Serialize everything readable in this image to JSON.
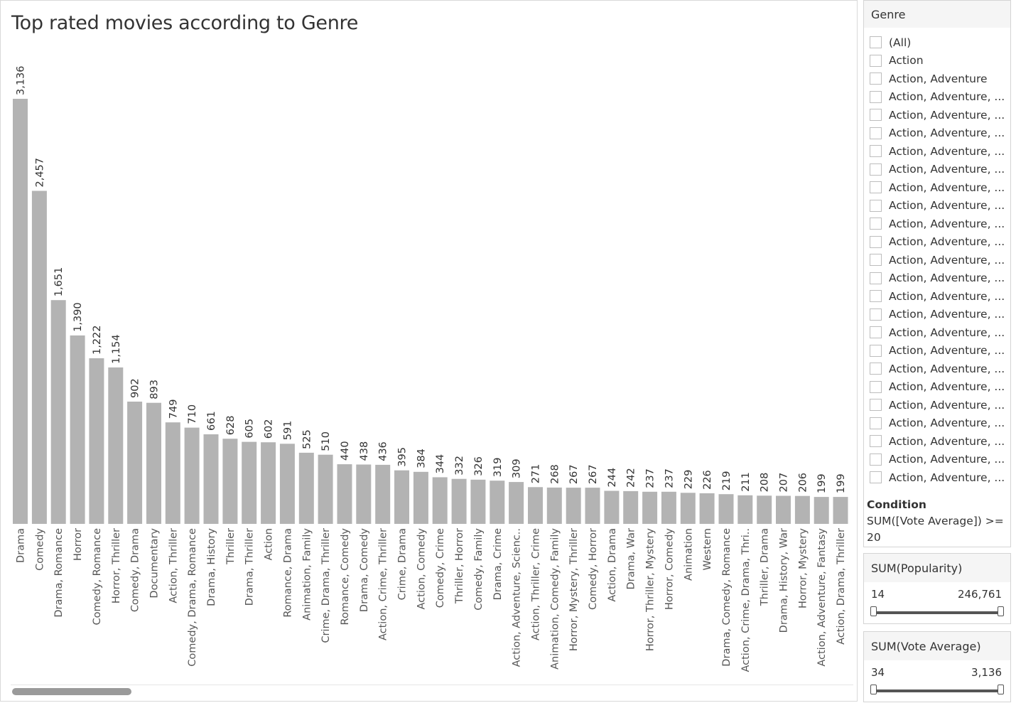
{
  "chart_data": {
    "type": "bar",
    "title": "Top rated movies according to Genre",
    "xlabel": "",
    "ylabel": "",
    "ylim": [
      0,
      3136
    ],
    "grid": false,
    "bar_color": "#b3b3b3",
    "categories": [
      "Drama",
      "Comedy",
      "Drama, Romance",
      "Horror",
      "Comedy, Romance",
      "Horror, Thriller",
      "Comedy, Drama",
      "Documentary",
      "Action, Thriller",
      "Comedy, Drama, Romance",
      "Drama, History",
      "Thriller",
      "Drama, Thriller",
      "Action",
      "Romance, Drama",
      "Animation, Family",
      "Crime, Drama, Thriller",
      "Romance, Comedy",
      "Drama, Comedy",
      "Action, Crime, Thriller",
      "Crime, Drama",
      "Action, Comedy",
      "Comedy, Crime",
      "Thriller, Horror",
      "Comedy, Family",
      "Drama, Crime",
      "Action, Adventure, Scienc..",
      "Action, Thriller, Crime",
      "Animation, Comedy, Family",
      "Horror, Mystery, Thriller",
      "Comedy, Horror",
      "Action, Drama",
      "Drama, War",
      "Horror, Thriller, Mystery",
      "Horror, Comedy",
      "Animation",
      "Western",
      "Drama, Comedy, Romance",
      "Action, Crime, Drama, Thri..",
      "Thriller, Drama",
      "Drama, History, War",
      "Horror, Mystery",
      "Action, Adventure, Fantasy",
      "Action, Drama, Thriller"
    ],
    "values": [
      3136,
      2457,
      1651,
      1390,
      1222,
      1154,
      902,
      893,
      749,
      710,
      661,
      628,
      605,
      602,
      591,
      525,
      510,
      440,
      438,
      436,
      395,
      384,
      344,
      332,
      326,
      319,
      309,
      271,
      268,
      267,
      267,
      244,
      242,
      237,
      237,
      229,
      226,
      219,
      211,
      208,
      207,
      206,
      199,
      199
    ],
    "value_labels": [
      "3,136",
      "2,457",
      "1,651",
      "1,390",
      "1,222",
      "1,154",
      "902",
      "893",
      "749",
      "710",
      "661",
      "628",
      "605",
      "602",
      "591",
      "525",
      "510",
      "440",
      "438",
      "436",
      "395",
      "384",
      "344",
      "332",
      "326",
      "319",
      "309",
      "271",
      "268",
      "267",
      "267",
      "244",
      "242",
      "237",
      "237",
      "229",
      "226",
      "219",
      "211",
      "208",
      "207",
      "206",
      "199",
      "199"
    ]
  },
  "genre_filter": {
    "title": "Genre",
    "items": [
      "(All)",
      "Action",
      "Action, Adventure",
      "Action, Adventure, ...",
      "Action, Adventure, ...",
      "Action, Adventure, ...",
      "Action, Adventure, ...",
      "Action, Adventure, ...",
      "Action, Adventure, ...",
      "Action, Adventure, ...",
      "Action, Adventure, ...",
      "Action, Adventure, ...",
      "Action, Adventure, ...",
      "Action, Adventure, ...",
      "Action, Adventure, ...",
      "Action, Adventure, ...",
      "Action, Adventure, ...",
      "Action, Adventure, ...",
      "Action, Adventure, ...",
      "Action, Adventure, ...",
      "Action, Adventure, ...",
      "Action, Adventure, ...",
      "Action, Adventure, ...",
      "Action, Adventure, ...",
      "Action, Adventure, ..."
    ],
    "condition_title": "Condition",
    "condition_text": "SUM([Vote Average]) >= 20"
  },
  "popularity_filter": {
    "title": "SUM(Popularity)",
    "min": "14",
    "max": "246,761"
  },
  "vote_filter": {
    "title": "SUM(Vote Average)",
    "min": "34",
    "max": "3,136"
  }
}
